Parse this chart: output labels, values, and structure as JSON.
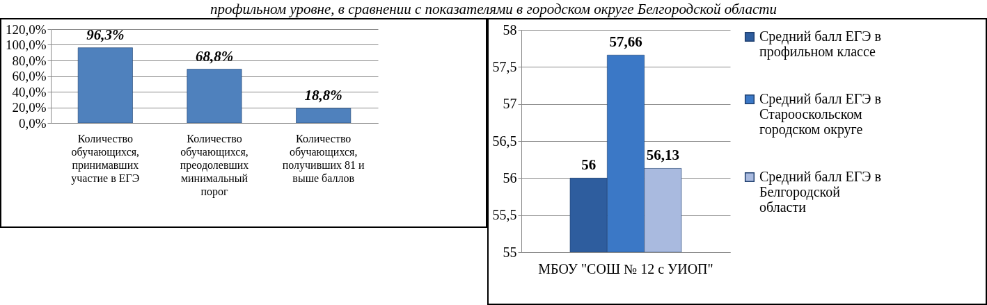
{
  "chart_data": [
    {
      "type": "bar",
      "title": "профильном уровне, в сравнении с показателями в городском округе Белгородской области",
      "categories": [
        "Количество обучающихся, принимавших участие в ЕГЭ",
        "Количество обучающихся, преодолевших минимальный порог",
        "Количество обучающихся, получивших 81 и выше баллов"
      ],
      "values": [
        96.3,
        68.8,
        18.8
      ],
      "color": "#4f81bd",
      "value_labels": [
        "96,3%",
        "68,8%",
        "18,8%"
      ],
      "ylim": [
        0,
        120
      ],
      "yticks": [
        {
          "value": 0,
          "label": "0,0%"
        },
        {
          "value": 20,
          "label": "20,0%"
        },
        {
          "value": 40,
          "label": "40,0%"
        },
        {
          "value": 60,
          "label": "60,0%"
        },
        {
          "value": 80,
          "label": "80,0%"
        },
        {
          "value": 100,
          "label": "100,0%"
        },
        {
          "value": 120,
          "label": "120,0%"
        }
      ],
      "grid": "y"
    },
    {
      "type": "bar",
      "categories": [
        "МБОУ \"СОШ № 12 с УИОП\""
      ],
      "series": [
        {
          "name": "Средний балл ЕГЭ в профильном классе",
          "color": "#2e5d9e",
          "values": [
            56
          ],
          "value_labels": [
            "56"
          ]
        },
        {
          "name": "Средний балл ЕГЭ в Старооскольском городском округе",
          "color": "#3b78c6",
          "values": [
            57.66
          ],
          "value_labels": [
            "57,66"
          ]
        },
        {
          "name": "Средний балл ЕГЭ в Белгородской области",
          "color": "#a9badf",
          "values": [
            56.13
          ],
          "value_labels": [
            "56,13"
          ]
        }
      ],
      "ylim": [
        55,
        58
      ],
      "yticks": [
        55,
        {
          "value": 55.5,
          "label": "55,5"
        },
        56,
        {
          "value": 56.5,
          "label": "56,5"
        },
        57,
        {
          "value": 57.5,
          "label": "57,5"
        },
        58
      ],
      "grid": "y",
      "legend": "right"
    }
  ]
}
